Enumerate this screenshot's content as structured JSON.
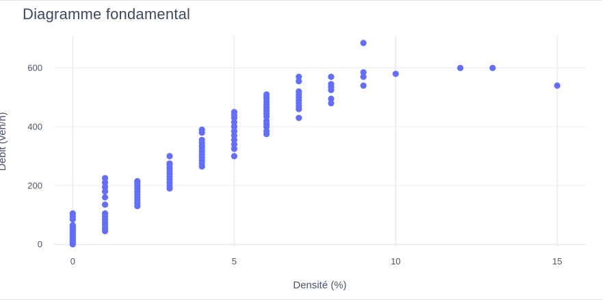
{
  "chart_data": {
    "type": "scatter",
    "title": "Diagramme fondamental",
    "xlabel": "Densité (%)",
    "ylabel": "Débit (veh/h)",
    "xlim": [
      -0.6,
      15.9
    ],
    "ylim": [
      -10,
      710
    ],
    "xticks": [
      0,
      5,
      10,
      15
    ],
    "yticks": [
      0,
      200,
      400,
      600
    ],
    "grid": true,
    "marker_color": "#636efa",
    "grid_color": "#e9edf5",
    "points": [
      {
        "x": 0,
        "y": 0
      },
      {
        "x": 0,
        "y": 5
      },
      {
        "x": 0,
        "y": 10
      },
      {
        "x": 0,
        "y": 15
      },
      {
        "x": 0,
        "y": 20
      },
      {
        "x": 0,
        "y": 25
      },
      {
        "x": 0,
        "y": 30
      },
      {
        "x": 0,
        "y": 35
      },
      {
        "x": 0,
        "y": 40
      },
      {
        "x": 0,
        "y": 45
      },
      {
        "x": 0,
        "y": 50
      },
      {
        "x": 0,
        "y": 55
      },
      {
        "x": 0,
        "y": 60
      },
      {
        "x": 0,
        "y": 65
      },
      {
        "x": 0,
        "y": 85
      },
      {
        "x": 0,
        "y": 95
      },
      {
        "x": 0,
        "y": 105
      },
      {
        "x": 1,
        "y": 45
      },
      {
        "x": 1,
        "y": 55
      },
      {
        "x": 1,
        "y": 65
      },
      {
        "x": 1,
        "y": 75
      },
      {
        "x": 1,
        "y": 85
      },
      {
        "x": 1,
        "y": 95
      },
      {
        "x": 1,
        "y": 105
      },
      {
        "x": 1,
        "y": 135
      },
      {
        "x": 1,
        "y": 160
      },
      {
        "x": 1,
        "y": 180
      },
      {
        "x": 1,
        "y": 195
      },
      {
        "x": 1,
        "y": 210
      },
      {
        "x": 1,
        "y": 225
      },
      {
        "x": 2,
        "y": 130
      },
      {
        "x": 2,
        "y": 140
      },
      {
        "x": 2,
        "y": 150
      },
      {
        "x": 2,
        "y": 160
      },
      {
        "x": 2,
        "y": 170
      },
      {
        "x": 2,
        "y": 180
      },
      {
        "x": 2,
        "y": 190
      },
      {
        "x": 2,
        "y": 200
      },
      {
        "x": 2,
        "y": 210
      },
      {
        "x": 2,
        "y": 215
      },
      {
        "x": 3,
        "y": 190
      },
      {
        "x": 3,
        "y": 200
      },
      {
        "x": 3,
        "y": 210
      },
      {
        "x": 3,
        "y": 220
      },
      {
        "x": 3,
        "y": 230
      },
      {
        "x": 3,
        "y": 240
      },
      {
        "x": 3,
        "y": 250
      },
      {
        "x": 3,
        "y": 260
      },
      {
        "x": 3,
        "y": 270
      },
      {
        "x": 3,
        "y": 275
      },
      {
        "x": 3,
        "y": 300
      },
      {
        "x": 4,
        "y": 265
      },
      {
        "x": 4,
        "y": 275
      },
      {
        "x": 4,
        "y": 285
      },
      {
        "x": 4,
        "y": 295
      },
      {
        "x": 4,
        "y": 305
      },
      {
        "x": 4,
        "y": 315
      },
      {
        "x": 4,
        "y": 325
      },
      {
        "x": 4,
        "y": 335
      },
      {
        "x": 4,
        "y": 345
      },
      {
        "x": 4,
        "y": 355
      },
      {
        "x": 4,
        "y": 380
      },
      {
        "x": 4,
        "y": 390
      },
      {
        "x": 5,
        "y": 300
      },
      {
        "x": 5,
        "y": 325
      },
      {
        "x": 5,
        "y": 340
      },
      {
        "x": 5,
        "y": 355
      },
      {
        "x": 5,
        "y": 370
      },
      {
        "x": 5,
        "y": 385
      },
      {
        "x": 5,
        "y": 400
      },
      {
        "x": 5,
        "y": 415
      },
      {
        "x": 5,
        "y": 430
      },
      {
        "x": 5,
        "y": 440
      },
      {
        "x": 5,
        "y": 450
      },
      {
        "x": 6,
        "y": 375
      },
      {
        "x": 6,
        "y": 385
      },
      {
        "x": 6,
        "y": 400
      },
      {
        "x": 6,
        "y": 410
      },
      {
        "x": 6,
        "y": 420
      },
      {
        "x": 6,
        "y": 435
      },
      {
        "x": 6,
        "y": 445
      },
      {
        "x": 6,
        "y": 455
      },
      {
        "x": 6,
        "y": 465
      },
      {
        "x": 6,
        "y": 475
      },
      {
        "x": 6,
        "y": 485
      },
      {
        "x": 6,
        "y": 495
      },
      {
        "x": 6,
        "y": 500
      },
      {
        "x": 6,
        "y": 510
      },
      {
        "x": 7,
        "y": 430
      },
      {
        "x": 7,
        "y": 460
      },
      {
        "x": 7,
        "y": 470
      },
      {
        "x": 7,
        "y": 480
      },
      {
        "x": 7,
        "y": 490
      },
      {
        "x": 7,
        "y": 500
      },
      {
        "x": 7,
        "y": 510
      },
      {
        "x": 7,
        "y": 520
      },
      {
        "x": 7,
        "y": 555
      },
      {
        "x": 7,
        "y": 570
      },
      {
        "x": 8,
        "y": 480
      },
      {
        "x": 8,
        "y": 495
      },
      {
        "x": 8,
        "y": 525
      },
      {
        "x": 8,
        "y": 535
      },
      {
        "x": 8,
        "y": 545
      },
      {
        "x": 8,
        "y": 570
      },
      {
        "x": 9,
        "y": 540
      },
      {
        "x": 9,
        "y": 570
      },
      {
        "x": 9,
        "y": 585
      },
      {
        "x": 9,
        "y": 685
      },
      {
        "x": 10,
        "y": 580
      },
      {
        "x": 12,
        "y": 600
      },
      {
        "x": 13,
        "y": 600
      },
      {
        "x": 15,
        "y": 540
      }
    ]
  }
}
